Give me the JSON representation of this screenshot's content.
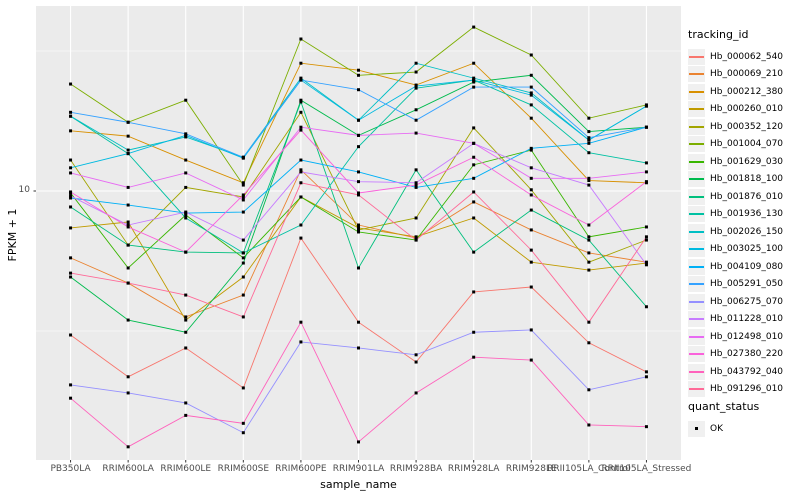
{
  "chart_data": {
    "type": "line",
    "title": "",
    "xlabel": "sample_name",
    "ylabel": "FPKM + 1",
    "y_scale": "log10",
    "y_tick_labels": [
      "10"
    ],
    "y_minor_breaks": [
      3.162,
      31.62
    ],
    "ylim_px_note": "single labeled break at 10; data spans ~1.2 to ~40",
    "legend_position": "right",
    "legend_title": "tracking_id",
    "quant_legend": {
      "title": "quant_status",
      "label": "OK",
      "marker": "black-square"
    },
    "panel_background": "#EBEBEB",
    "gridline_color": "#FFFFFF",
    "point_color": "#000000",
    "categories": [
      "PB350LA",
      "RRIM600LA",
      "RRIM600LE",
      "RRIM600SE",
      "RRIM600PE",
      "RRIM901LA",
      "RRIM928BA",
      "RRIM928LA",
      "RRIM928LE",
      "RRII105LA_Control",
      "RRII105LA_Stressed"
    ],
    "series": [
      {
        "name": "Hb_000062_540",
        "color": "#F8766D",
        "values": [
          3.06,
          2.17,
          2.75,
          1.98,
          6.79,
          3.4,
          2.45,
          4.36,
          4.54,
          2.87,
          2.26
        ]
      },
      {
        "name": "Hb_000069_210",
        "color": "#EA8331",
        "values": [
          5.77,
          4.69,
          3.55,
          4.25,
          11.9,
          7.56,
          6.79,
          9.14,
          7.26,
          6.01,
          5.57
        ]
      },
      {
        "name": "Hb_000212_380",
        "color": "#D89000",
        "values": [
          16.4,
          15.7,
          12.9,
          10.7,
          28.6,
          27.0,
          23.9,
          28.6,
          18.2,
          10.9,
          10.7
        ]
      },
      {
        "name": "Hb_000260_010",
        "color": "#C09B00",
        "values": [
          7.38,
          7.75,
          3.46,
          4.93,
          9.52,
          7.38,
          6.86,
          8.01,
          5.57,
          5.22,
          5.53
        ]
      },
      {
        "name": "Hb_000352_120",
        "color": "#A3A500",
        "values": [
          12.9,
          6.41,
          10.3,
          9.52,
          19.1,
          7.26,
          8.01,
          16.8,
          10.1,
          5.57,
          6.68
        ]
      },
      {
        "name": "Hb_001004_070",
        "color": "#7CAE00",
        "values": [
          24.1,
          17.6,
          21.1,
          10.5,
          34.9,
          25.9,
          26.6,
          38.5,
          30.6,
          18.2,
          20.3
        ]
      },
      {
        "name": "Hb_001629_030",
        "color": "#39B600",
        "values": [
          9.84,
          5.31,
          8.21,
          5.77,
          9.52,
          7.14,
          6.68,
          12.4,
          14.0,
          6.86,
          7.44
        ]
      },
      {
        "name": "Hb_001818_100",
        "color": "#00BB4E",
        "values": [
          4.93,
          3.46,
          3.13,
          5.53,
          21.1,
          15.8,
          19.5,
          24.5,
          25.9,
          16.3,
          16.9
        ]
      },
      {
        "name": "Hb_001876_010",
        "color": "#00BF7D",
        "values": [
          8.77,
          6.41,
          6.05,
          6.01,
          20.8,
          5.31,
          11.9,
          6.05,
          8.55,
          6.68,
          3.86
        ]
      },
      {
        "name": "Hb_001936_130",
        "color": "#00C1A3",
        "values": [
          18.5,
          13.6,
          8.01,
          6.01,
          7.56,
          14.4,
          23.3,
          24.9,
          20.3,
          13.7,
          12.6
        ]
      },
      {
        "name": "Hb_002026_150",
        "color": "#00BFC4",
        "values": [
          18.5,
          14.0,
          15.6,
          13.2,
          25.3,
          17.9,
          28.6,
          25.3,
          22.4,
          15.2,
          20.1
        ]
      },
      {
        "name": "Hb_003025_100",
        "color": "#00BAE0",
        "values": [
          12.1,
          13.6,
          15.8,
          13.1,
          24.9,
          17.9,
          23.7,
          24.9,
          22.0,
          15.2,
          20.1
        ]
      },
      {
        "name": "Hb_004109_080",
        "color": "#00B0F6",
        "values": [
          9.44,
          8.91,
          8.34,
          8.41,
          12.9,
          11.7,
          10.3,
          11.1,
          14.2,
          14.8,
          16.9
        ]
      },
      {
        "name": "Hb_005291_050",
        "color": "#35A2FF",
        "values": [
          19.1,
          17.6,
          16.0,
          13.2,
          24.9,
          23.0,
          17.9,
          23.5,
          23.5,
          15.5,
          16.9
        ]
      },
      {
        "name": "Hb_006275_070",
        "color": "#9590FF",
        "values": [
          2.03,
          1.9,
          1.75,
          1.37,
          2.89,
          2.75,
          2.6,
          3.13,
          3.19,
          1.95,
          2.17
        ]
      },
      {
        "name": "Hb_011228_010",
        "color": "#C77CFF",
        "values": [
          9.6,
          7.56,
          8.41,
          6.68,
          11.7,
          10.8,
          10.7,
          14.8,
          12.1,
          10.5,
          5.45
        ]
      },
      {
        "name": "Hb_012498_010",
        "color": "#E76BF3",
        "values": [
          11.6,
          10.3,
          11.6,
          9.29,
          16.9,
          15.8,
          16.1,
          14.8,
          11.1,
          11.1,
          11.7
        ]
      },
      {
        "name": "Hb_027380_220",
        "color": "#FA62DB",
        "values": [
          9.92,
          7.44,
          6.05,
          9.68,
          16.5,
          9.84,
          10.5,
          13.2,
          9.68,
          7.56,
          10.8
        ]
      },
      {
        "name": "Hb_043792_040",
        "color": "#FF62BC",
        "values": [
          1.82,
          1.22,
          1.58,
          1.48,
          3.4,
          1.27,
          1.9,
          2.55,
          2.49,
          1.46,
          1.44
        ]
      },
      {
        "name": "Hb_091296_010",
        "color": "#FF6A98",
        "values": [
          5.09,
          4.69,
          4.25,
          3.55,
          10.7,
          9.68,
          6.68,
          9.92,
          6.15,
          3.4,
          6.86
        ]
      }
    ]
  }
}
